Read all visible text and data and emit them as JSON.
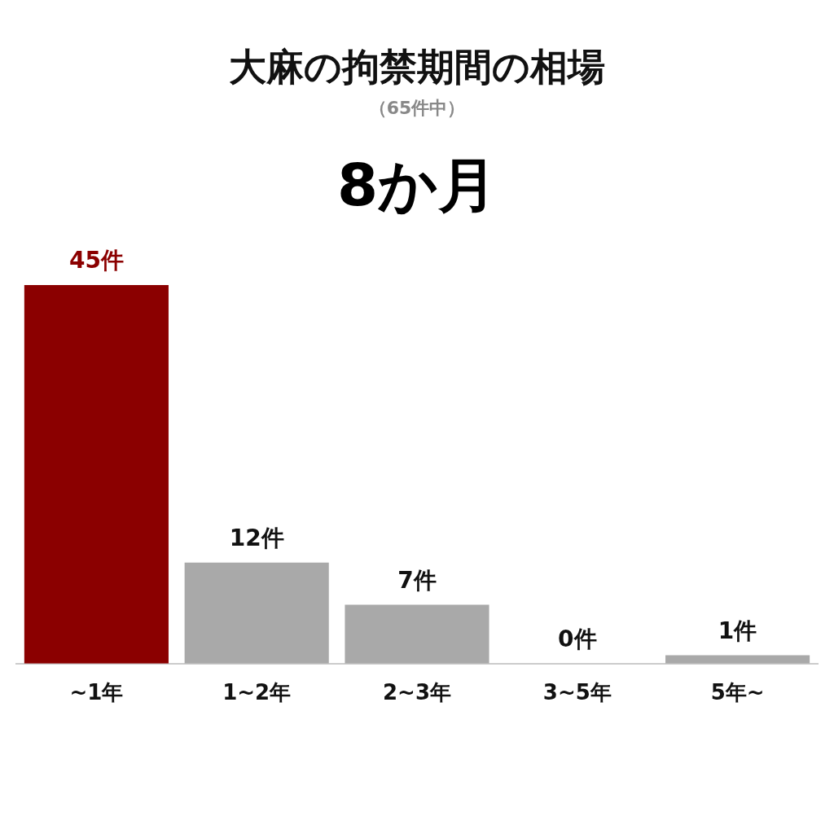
{
  "chart_data": {
    "type": "bar",
    "title": "大麻の拘禁期間の相場",
    "subtitle": "（65件中）",
    "annotations": [
      "8か月"
    ],
    "categories": [
      "~1年",
      "1~2年",
      "2~3年",
      "3~5年",
      "5年~"
    ],
    "values": [
      45,
      12,
      7,
      0,
      1
    ],
    "colors": [
      "#8b0000",
      "#a9a9a9",
      "#a9a9a9",
      "#a9a9a9",
      "#a9a9a9"
    ],
    "value_labels": [
      "45件",
      "12件",
      "7件",
      "0件",
      "1件"
    ],
    "grid": false,
    "legend": false
  }
}
